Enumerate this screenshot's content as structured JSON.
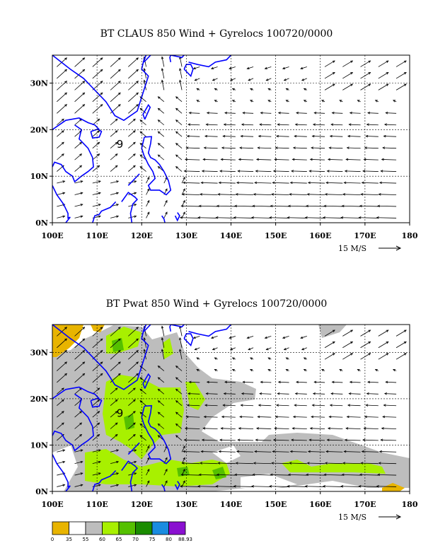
{
  "panel1": {
    "title": "BT CLAUS 850 Wind + Gyrelocs 100720/0000"
  },
  "panel2": {
    "title": "BT Pwat 850 Wind + Gyrelocs 100720/0000"
  },
  "axes": {
    "lon_labels": [
      "100E",
      "110E",
      "120E",
      "130E",
      "140E",
      "150E",
      "160E",
      "170E",
      "180"
    ],
    "lat_labels": [
      "0N",
      "10N",
      "20N",
      "30N"
    ],
    "lon_range": [
      100,
      180
    ],
    "lat_range": [
      0,
      36
    ]
  },
  "gyre_marker": {
    "label": "9",
    "lon": 115.8,
    "lat": 17
  },
  "vector_scale": {
    "label": "15 M/S"
  },
  "colorbar": {
    "labels": [
      "0",
      "35",
      "55",
      "60",
      "65",
      "70",
      "75",
      "80",
      "88.93"
    ],
    "colors": [
      "#e8b400",
      "#ffffff",
      "#bdbdbd",
      "#a8f000",
      "#55c000",
      "#1a8c00",
      "#1a8ce0",
      "#8a10d0"
    ]
  },
  "colors": {
    "coast": "#0000ff",
    "grid": "#000000",
    "arrow": "#000000"
  }
}
